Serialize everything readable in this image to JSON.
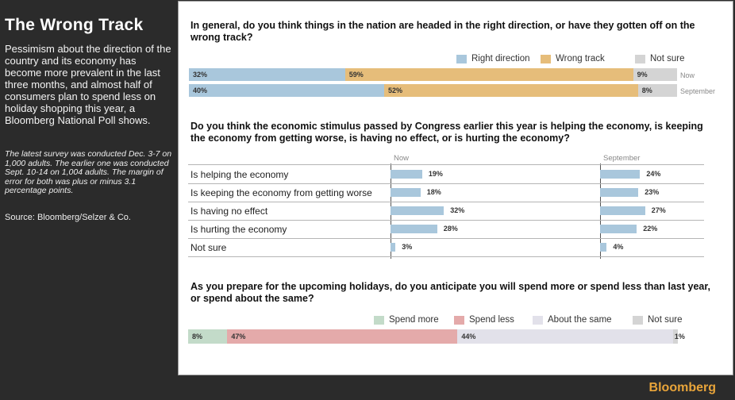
{
  "sidebar": {
    "title": "The Wrong Track",
    "intro": "Pessimism about the direction of the country and its economy has become more prevalent in the last three months, and almost half of consumers plan to spend less on holiday shopping this year, a Bloomberg National Poll shows.",
    "method": "The latest survey was conducted Dec. 3-7 on 1,000 adults. The earlier one was conducted Sept. 10-14 on 1,004 adults. The margin of error for both was plus or minus 3.1 percentage points.",
    "source": "Source: Bloomberg/Selzer & Co."
  },
  "footer": {
    "brand": "Bloomberg"
  },
  "chart_data": [
    {
      "type": "bar",
      "title": "In general, do you think things in the nation are headed in the right direction, or have they gotten off on the wrong track?",
      "categories": [
        "Now",
        "September"
      ],
      "series": [
        {
          "name": "Right direction",
          "values": [
            32,
            40
          ],
          "labels": [
            "32%",
            "40%"
          ],
          "color": "#a9c7dc"
        },
        {
          "name": "Wrong track",
          "values": [
            59,
            52
          ],
          "labels": [
            "59%",
            "52%"
          ],
          "color": "#e6bd7a"
        },
        {
          "name": "Not sure",
          "values": [
            9,
            8
          ],
          "labels": [
            "9%",
            "8%"
          ],
          "color": "#d4d4d4"
        }
      ]
    },
    {
      "type": "bar",
      "title": "Do you think the economic stimulus passed by Congress earlier this year is helping the economy, is keeping the economy from getting worse, is having no effect, or is hurting the economy?",
      "categories": [
        "Is helping the economy",
        "Is keeping the economy from getting worse",
        "Is having no effect",
        "Is hurting the economy",
        "Not sure"
      ],
      "series": [
        {
          "name": "Now",
          "values": [
            19,
            18,
            32,
            28,
            3
          ],
          "labels": [
            "19%",
            "18%",
            "32%",
            "28%",
            "3%"
          ]
        },
        {
          "name": "September",
          "values": [
            24,
            23,
            27,
            22,
            4
          ],
          "labels": [
            "24%",
            "23%",
            "27%",
            "22%",
            "4%"
          ]
        }
      ],
      "color": "#a9c7dc"
    },
    {
      "type": "bar",
      "title": "As you prepare for the upcoming holidays, do you anticipate you will spend more or spend less than last year, or spend about the same?",
      "categories": [
        ""
      ],
      "series": [
        {
          "name": "Spend more",
          "values": [
            8
          ],
          "labels": [
            "8%"
          ],
          "color": "#c3dbc9"
        },
        {
          "name": "Spend less",
          "values": [
            47
          ],
          "labels": [
            "47%"
          ],
          "color": "#e4aaaa"
        },
        {
          "name": "About the same",
          "values": [
            44
          ],
          "labels": [
            "44%"
          ],
          "color": "#e2e1ea"
        },
        {
          "name": "Not sure",
          "values": [
            1
          ],
          "labels": [
            "1%"
          ],
          "color": "#d4d4d4"
        }
      ]
    }
  ]
}
